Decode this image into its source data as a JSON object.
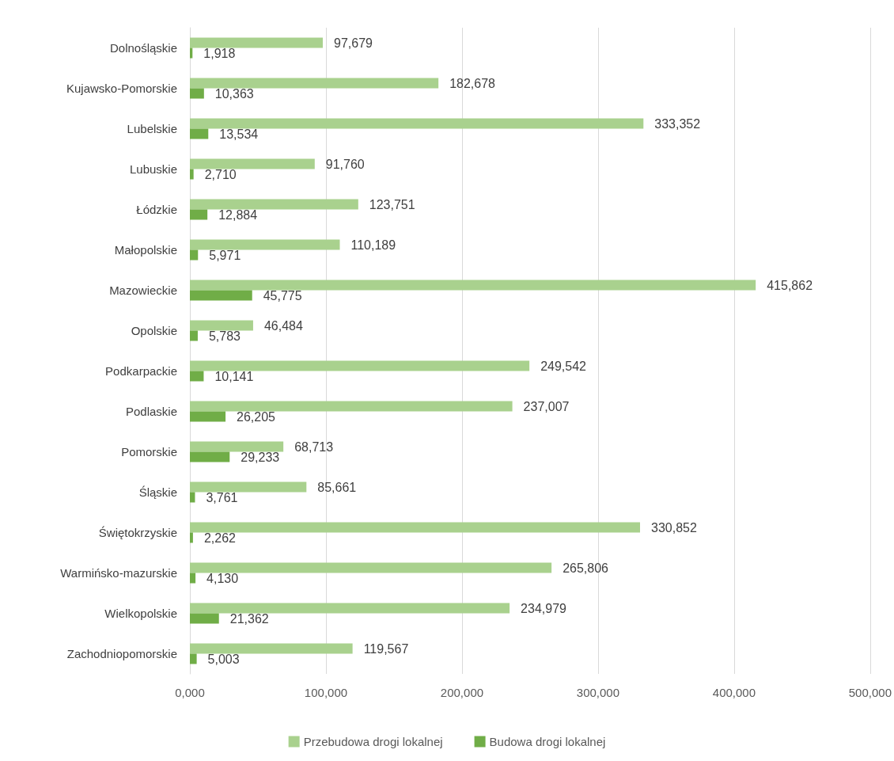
{
  "chart_data": {
    "type": "bar",
    "orientation": "horizontal",
    "categories": [
      "Dolnośląskie",
      "Kujawsko-Pomorskie",
      "Lubelskie",
      "Lubuskie",
      "Łódzkie",
      "Małopolskie",
      "Mazowieckie",
      "Opolskie",
      "Podkarpackie",
      "Podlaskie",
      "Pomorskie",
      "Śląskie",
      "Świętokrzyskie",
      "Warmińsko-mazurskie",
      "Wielkopolskie",
      "Zachodniopomorskie"
    ],
    "series": [
      {
        "name": "Przebudowa drogi lokalnej",
        "color": "#a9d18e",
        "values": [
          97679,
          182678,
          333352,
          91760,
          123751,
          110189,
          415862,
          46484,
          249542,
          237007,
          68713,
          85661,
          330852,
          265806,
          234979,
          119567
        ],
        "value_labels": [
          "97,679",
          "182,678",
          "333,352",
          "91,760",
          "123,751",
          "110,189",
          "415,862",
          "46,484",
          "249,542",
          "237,007",
          "68,713",
          "85,661",
          "330,852",
          "265,806",
          "234,979",
          "119,567"
        ]
      },
      {
        "name": "Budowa drogi lokalnej",
        "color": "#70ad47",
        "values": [
          1918,
          10363,
          13534,
          2710,
          12884,
          5971,
          45775,
          5783,
          10141,
          26205,
          29233,
          3761,
          2262,
          4130,
          21362,
          5003
        ],
        "value_labels": [
          "1,918",
          "10,363",
          "13,534",
          "2,710",
          "12,884",
          "5,971",
          "45,775",
          "5,783",
          "10,141",
          "26,205",
          "29,233",
          "3,761",
          "2,262",
          "4,130",
          "21,362",
          "5,003"
        ]
      }
    ],
    "xlim": [
      0,
      500000
    ],
    "xticks": [
      {
        "value": 0,
        "label": "0,000"
      },
      {
        "value": 100000,
        "label": "100,000"
      },
      {
        "value": 200000,
        "label": "200,000"
      },
      {
        "value": 300000,
        "label": "300,000"
      },
      {
        "value": 400000,
        "label": "400,000"
      },
      {
        "value": 500000,
        "label": "500,000"
      }
    ],
    "grid": "x",
    "legend": "bottom"
  }
}
